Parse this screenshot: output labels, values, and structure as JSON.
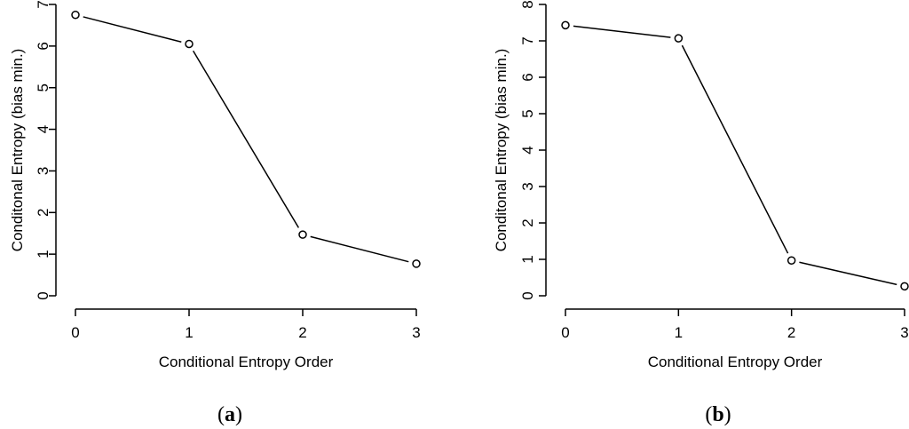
{
  "figure": {
    "background": "#ffffff",
    "ink_color": "#000000"
  },
  "chart_data": [
    {
      "id": "panel-a",
      "type": "line",
      "title": "",
      "xlabel": "Conditional Entropy Order",
      "ylabel": "Conditonal Entropy (bias min.)",
      "x": [
        0,
        1,
        2,
        3
      ],
      "values": [
        6.75,
        6.05,
        1.47,
        0.77
      ],
      "xticks": [
        0,
        1,
        2,
        3
      ],
      "yticks": [
        0,
        1,
        2,
        3,
        4,
        5,
        6,
        7
      ],
      "xlim": [
        0,
        3
      ],
      "ylim": [
        0,
        7
      ],
      "marker": "open-circle",
      "line_style": "solid",
      "grid": false,
      "legend": "none",
      "caption_prefix": "(",
      "caption_letter": "a",
      "caption_suffix": ")"
    },
    {
      "id": "panel-b",
      "type": "line",
      "title": "",
      "xlabel": "Conditional Entropy Order",
      "ylabel": "Conditonal Entropy (bias min.)",
      "x": [
        0,
        1,
        2,
        3
      ],
      "values": [
        7.43,
        7.07,
        0.97,
        0.26
      ],
      "xticks": [
        0,
        1,
        2,
        3
      ],
      "yticks": [
        0,
        1,
        2,
        3,
        4,
        5,
        6,
        7,
        8
      ],
      "xlim": [
        0,
        3
      ],
      "ylim": [
        0,
        8
      ],
      "marker": "open-circle",
      "line_style": "solid",
      "grid": false,
      "legend": "none",
      "caption_prefix": "(",
      "caption_letter": "b",
      "caption_suffix": ")"
    }
  ]
}
